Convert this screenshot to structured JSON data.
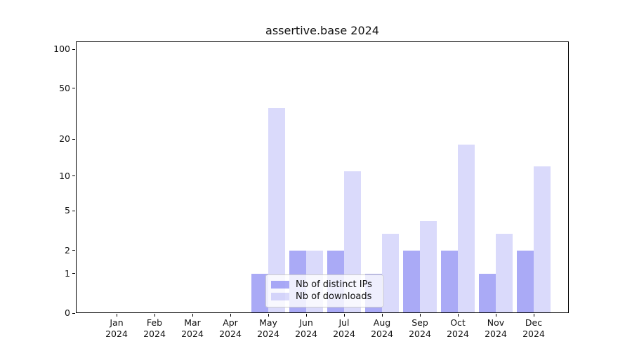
{
  "chart_data": {
    "type": "bar",
    "title": "assertive.base 2024",
    "categories": [
      "Jan 2024",
      "Feb 2024",
      "Mar 2024",
      "Apr 2024",
      "May 2024",
      "Jun 2024",
      "Jul 2024",
      "Aug 2024",
      "Sep 2024",
      "Oct 2024",
      "Nov 2024",
      "Dec 2024"
    ],
    "series": [
      {
        "name": "Nb of distinct IPs",
        "values": [
          0,
          0,
          0,
          0,
          1,
          2,
          2,
          1,
          2,
          2,
          1,
          2
        ],
        "color_hex": "#aaaaf6",
        "css_color": "rgba(85,85,238,0.5)"
      },
      {
        "name": "Nb of downloads",
        "values": [
          0,
          0,
          0,
          0,
          35,
          2,
          11,
          3,
          4,
          18,
          3,
          12
        ],
        "color_hex": "#dadaf9",
        "css_color": "rgba(85,85,238,0.22)"
      }
    ],
    "yscale": "log1p",
    "ylim": [
      0,
      115
    ],
    "yticks": [
      0,
      1,
      2,
      5,
      10,
      20,
      50,
      100
    ],
    "major_gridlines": [
      1,
      10,
      100
    ],
    "minor_gridlines": [
      2,
      3,
      4,
      5,
      6,
      7,
      8,
      9,
      20,
      30,
      40,
      50,
      60,
      70,
      80,
      90
    ],
    "grid": true,
    "bar_grouping": "side-by-side",
    "legend_position": "lower center (inside plot)",
    "colors": {
      "major_grid": "#bcbcbc",
      "minor_grid": "#e8e8e8",
      "axis": "#000000",
      "legend_border": "#cccccc",
      "text": "#111111"
    }
  }
}
